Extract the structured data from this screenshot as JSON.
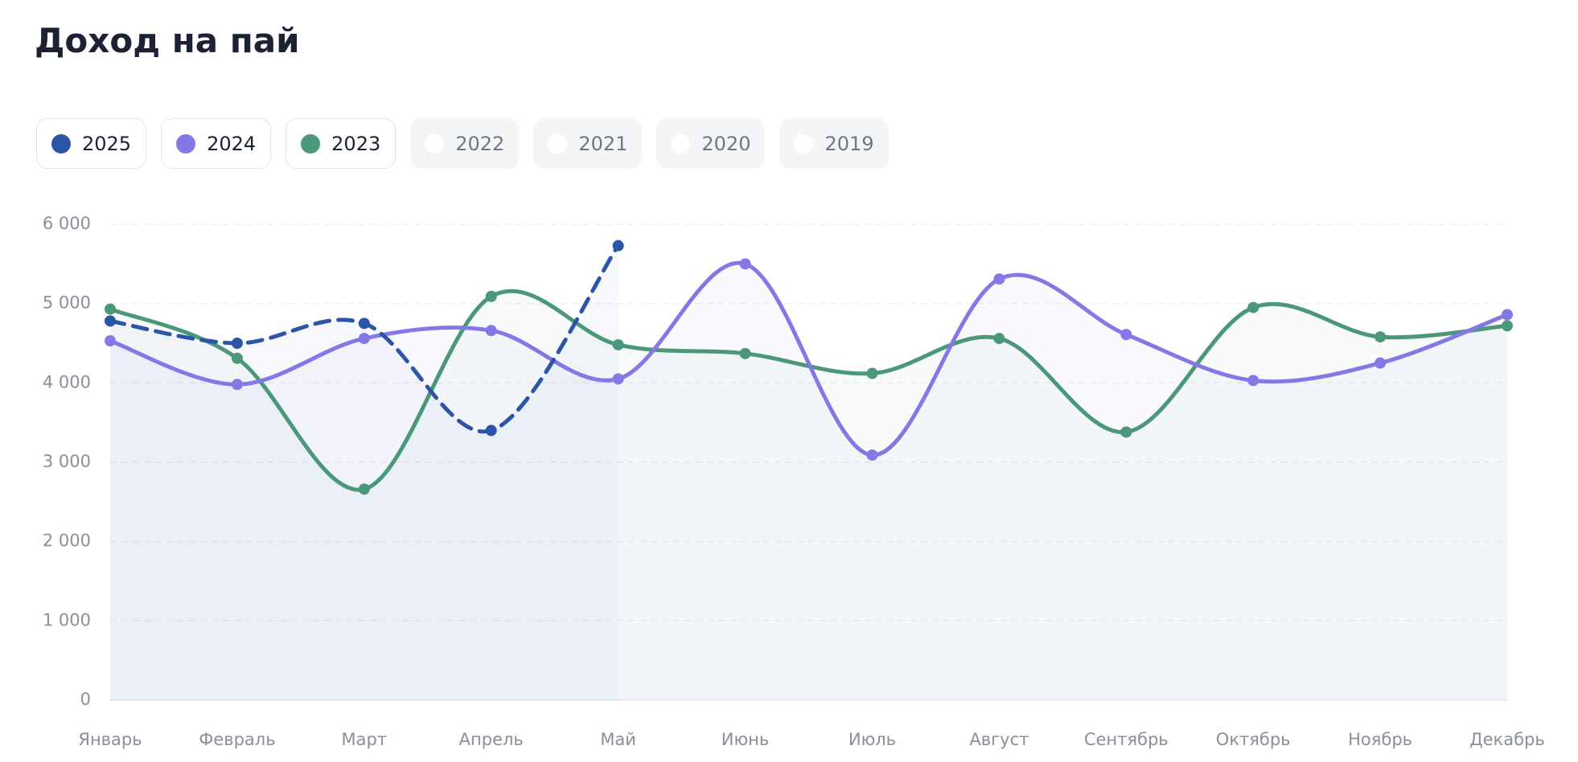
{
  "chart_data": {
    "type": "line",
    "title": "Доход на пай",
    "categories": [
      "Январь",
      "Февраль",
      "Март",
      "Апрель",
      "Май",
      "Июнь",
      "Июль",
      "Август",
      "Сентябрь",
      "Октябрь",
      "Ноябрь",
      "Декабрь"
    ],
    "series": [
      {
        "name": "2025",
        "color": "#2b55a6",
        "dashed": true,
        "values": [
          4780,
          4500,
          4750,
          3400,
          5730,
          null,
          null,
          null,
          null,
          null,
          null,
          null
        ]
      },
      {
        "name": "2024",
        "color": "#8478e6",
        "values": [
          4530,
          3980,
          4560,
          4660,
          4050,
          5500,
          3090,
          5310,
          4610,
          4030,
          4250,
          4860
        ]
      },
      {
        "name": "2023",
        "color": "#4a9878",
        "values": [
          4930,
          4310,
          2660,
          5090,
          4480,
          4370,
          4120,
          4560,
          3380,
          4950,
          4580,
          4720
        ]
      }
    ],
    "inactive_legend": [
      "2022",
      "2021",
      "2020",
      "2019"
    ],
    "ylim": [
      0,
      6000
    ],
    "yticks": [
      0,
      {
        "value": 1000,
        "label": "1 000"
      },
      {
        "value": 2000,
        "label": "2 000"
      },
      {
        "value": 3000,
        "label": "3 000"
      },
      {
        "value": 4000,
        "label": "4 000"
      },
      {
        "value": 5000,
        "label": "5 000"
      },
      {
        "value": 6000,
        "label": "6 000"
      }
    ],
    "grid": true
  }
}
